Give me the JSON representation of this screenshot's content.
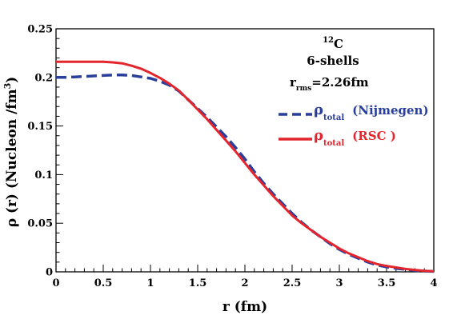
{
  "chart_data": {
    "type": "line",
    "xlabel": "r (fm)",
    "ylabel_main": "ρ (r) (Nucleon /fm",
    "ylabel_sup": "3",
    "ylabel_close": ")",
    "xlim": [
      0,
      4
    ],
    "ylim": [
      0,
      0.25
    ],
    "xticks": [
      0,
      0.5,
      1,
      1.5,
      2,
      2.5,
      3,
      3.5,
      4
    ],
    "xtick_labels": [
      "0",
      "0.5",
      "1",
      "1.5",
      "2",
      "2.5",
      "3",
      "3.5",
      "4"
    ],
    "yticks": [
      0,
      0.05,
      0.1,
      0.15,
      0.2,
      0.25
    ],
    "ytick_labels": [
      "0",
      "0.05",
      "0.1",
      "0.15",
      "0.2",
      "0.25"
    ],
    "grid": false,
    "annotations": {
      "nucleus_sup": "12",
      "nucleus": "C",
      "shells": "6-shells",
      "rms_symbol": "r",
      "rms_sub": "rms",
      "rms_value": "=2.26fm"
    },
    "legend_position": "top-right",
    "series": [
      {
        "legend_symbol": "ρ",
        "legend_sub": "total",
        "legend_label": "(Nijmegen)",
        "color": "#2a3f9a",
        "style": "dashed",
        "x": [
          0,
          0.1,
          0.2,
          0.3,
          0.4,
          0.5,
          0.6,
          0.7,
          0.8,
          0.9,
          1.0,
          1.1,
          1.2,
          1.3,
          1.4,
          1.5,
          1.6,
          1.7,
          1.8,
          1.9,
          2.0,
          2.1,
          2.2,
          2.3,
          2.4,
          2.5,
          2.6,
          2.7,
          2.8,
          2.9,
          3.0,
          3.1,
          3.2,
          3.3,
          3.4,
          3.5,
          3.6,
          3.7,
          3.8,
          3.9,
          4.0
        ],
        "y": [
          0.2,
          0.2,
          0.2005,
          0.201,
          0.2015,
          0.202,
          0.2025,
          0.2025,
          0.202,
          0.2005,
          0.199,
          0.196,
          0.192,
          0.186,
          0.177,
          0.168,
          0.159,
          0.149,
          0.139,
          0.128,
          0.116,
          0.103,
          0.091,
          0.08,
          0.07,
          0.06,
          0.051,
          0.043,
          0.036,
          0.029,
          0.023,
          0.018,
          0.014,
          0.01,
          0.007,
          0.005,
          0.0035,
          0.0025,
          0.0015,
          0.0008,
          0.0004
        ]
      },
      {
        "legend_symbol": "ρ",
        "legend_sub": "total",
        "legend_label": "(RSC )",
        "color": "#e3262e",
        "style": "solid",
        "x": [
          0,
          0.1,
          0.2,
          0.3,
          0.4,
          0.5,
          0.6,
          0.7,
          0.8,
          0.9,
          1.0,
          1.1,
          1.2,
          1.3,
          1.4,
          1.5,
          1.6,
          1.7,
          1.8,
          1.9,
          2.0,
          2.1,
          2.2,
          2.3,
          2.4,
          2.5,
          2.6,
          2.7,
          2.8,
          2.9,
          3.0,
          3.1,
          3.2,
          3.3,
          3.4,
          3.5,
          3.6,
          3.7,
          3.8,
          3.9,
          4.0
        ],
        "y": [
          0.216,
          0.216,
          0.216,
          0.216,
          0.216,
          0.216,
          0.2155,
          0.2145,
          0.212,
          0.209,
          0.2045,
          0.1995,
          0.1935,
          0.1865,
          0.177,
          0.167,
          0.157,
          0.146,
          0.135,
          0.124,
          0.112,
          0.1,
          0.089,
          0.078,
          0.068,
          0.058,
          0.05,
          0.043,
          0.036,
          0.03,
          0.024,
          0.019,
          0.015,
          0.011,
          0.008,
          0.006,
          0.0045,
          0.003,
          0.002,
          0.001,
          0.0005
        ]
      }
    ]
  }
}
